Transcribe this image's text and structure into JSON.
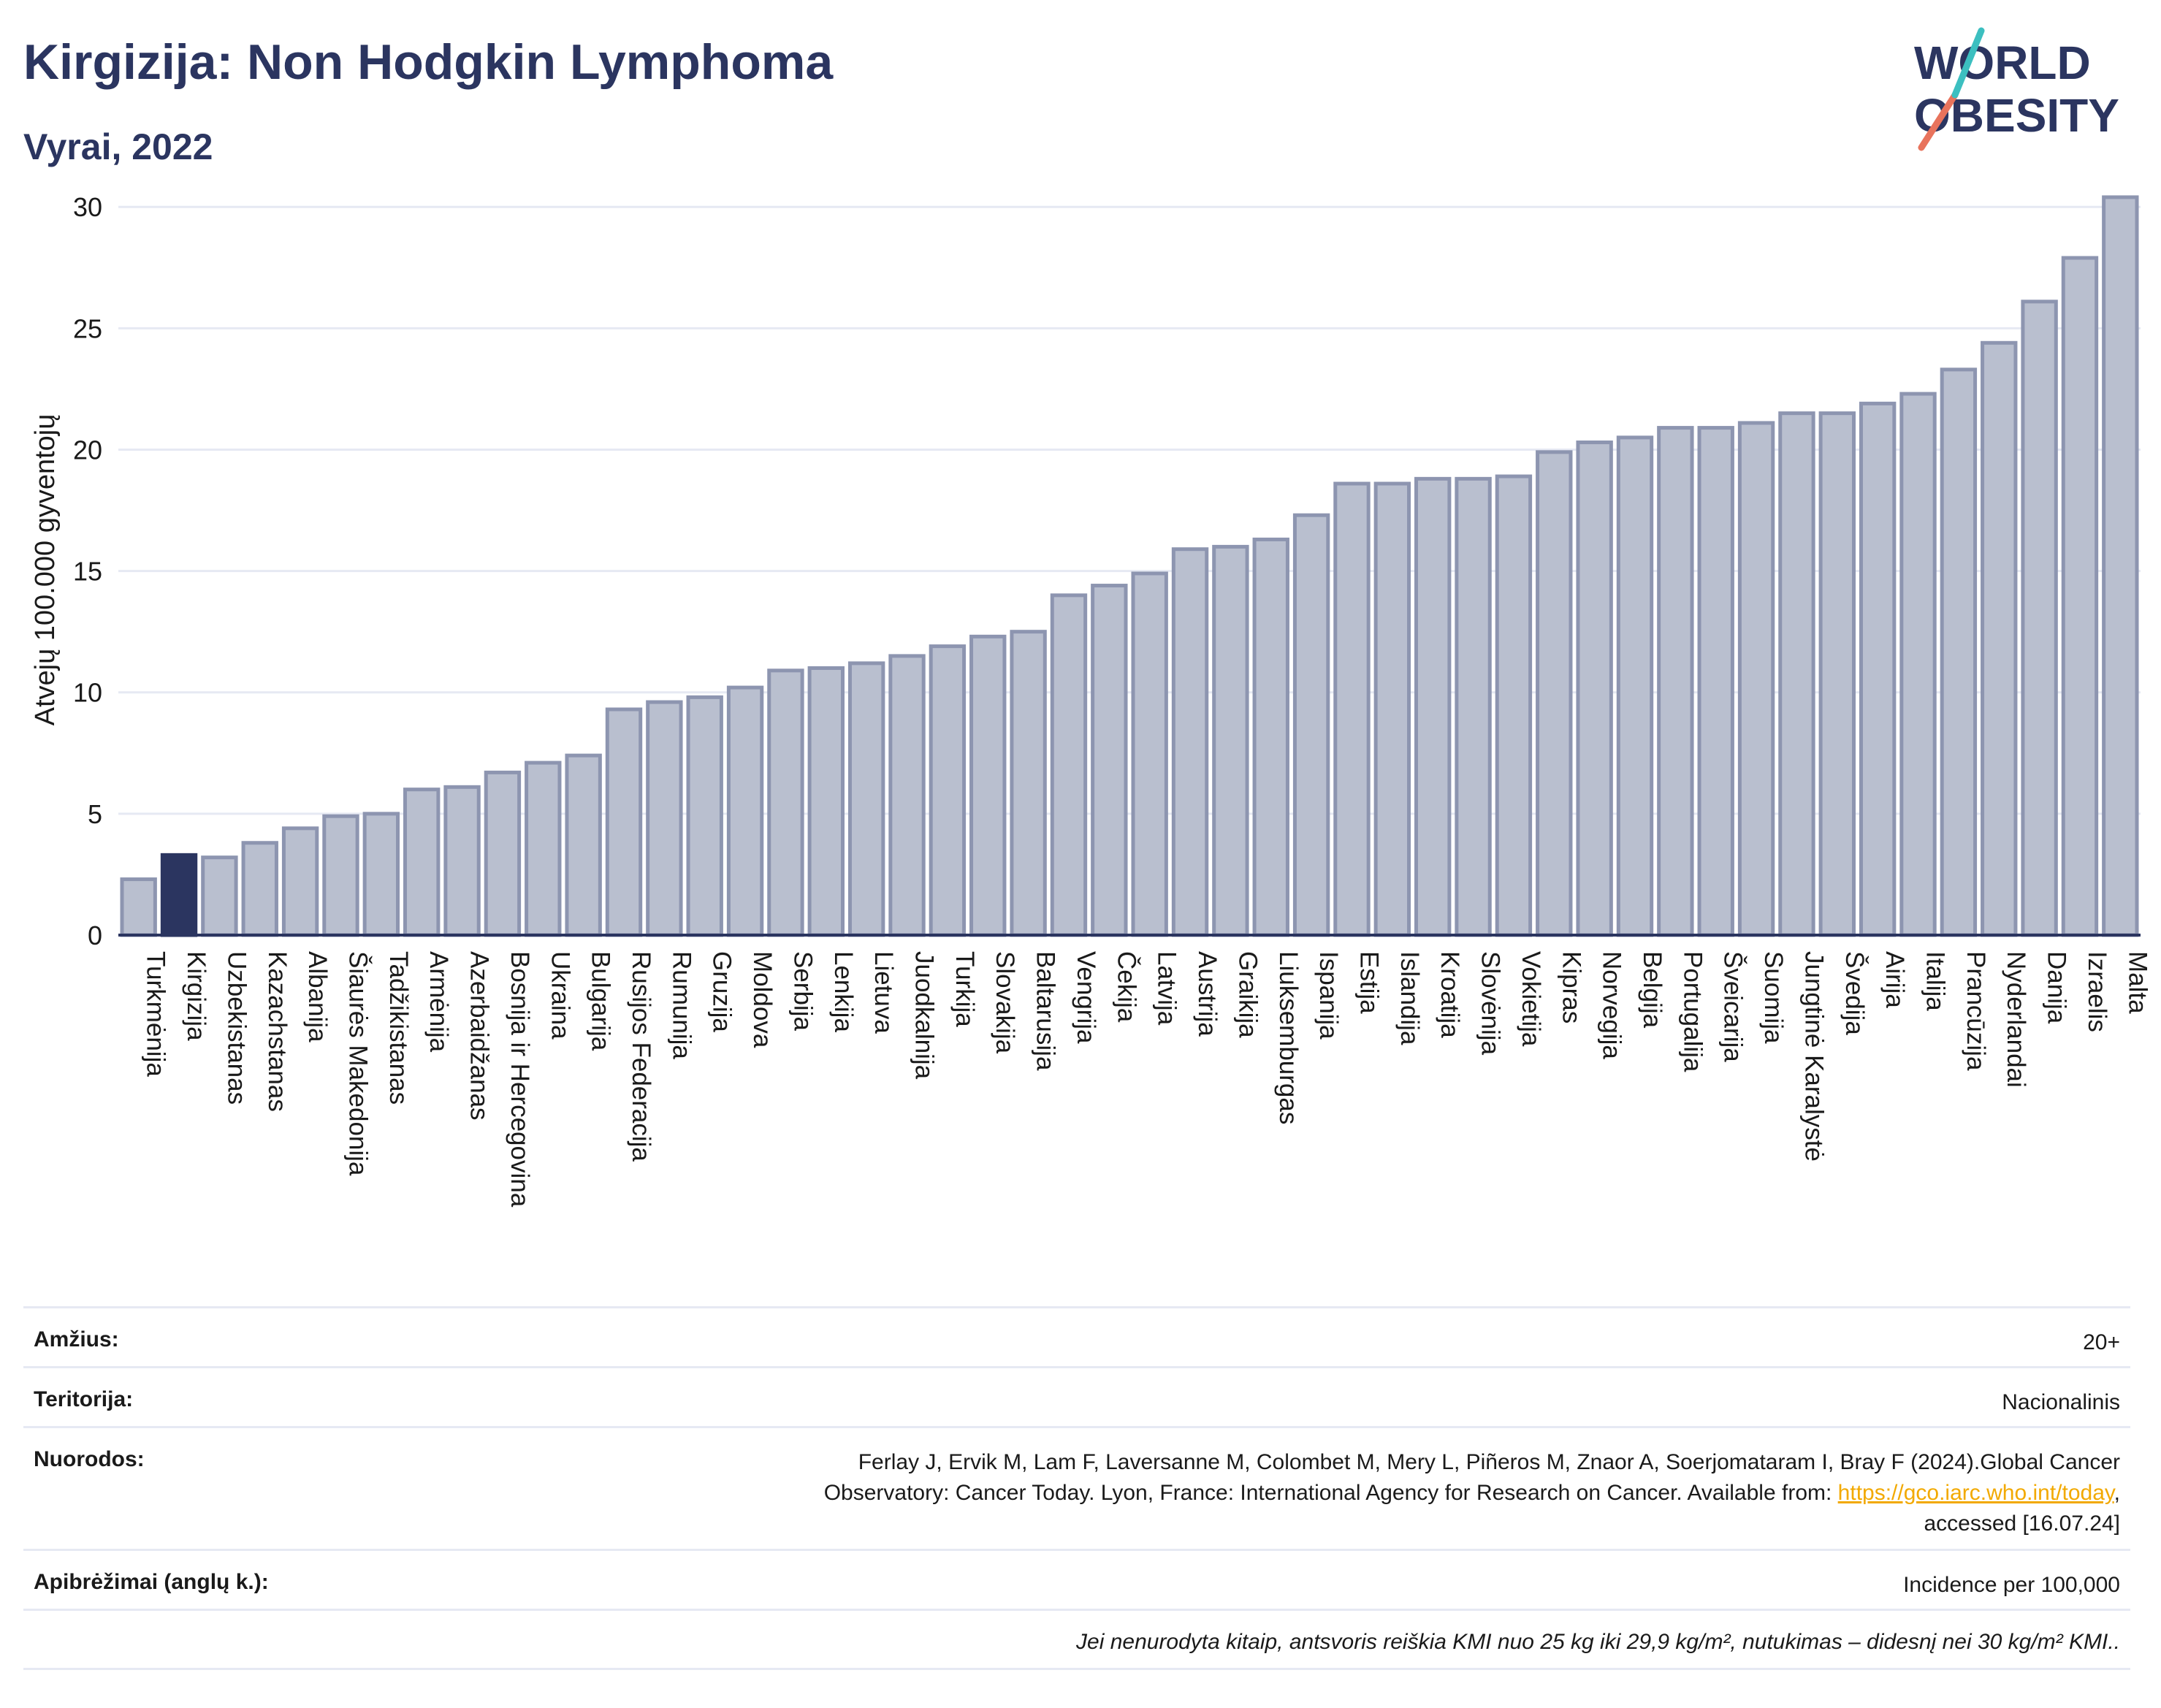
{
  "header": {
    "title": "Kirgizija: Non Hodgkin Lymphoma",
    "subtitle": "Vyrai, 2022"
  },
  "logo": {
    "line1": "WORLD",
    "line2": "OBESITY"
  },
  "colors": {
    "bar": "#b9bfcf",
    "bar_stroke": "#8d95b0",
    "highlight": "#2b3560",
    "text": "#2b3560",
    "grid": "#e6e9f3",
    "link": "#f2a900"
  },
  "chart_data": {
    "type": "bar",
    "ylabel": "Atvejų 100.000 gyventojų",
    "ylim": [
      0,
      31
    ],
    "yticks": [
      0,
      5,
      10,
      15,
      20,
      25,
      30
    ],
    "grid": true,
    "highlight": "Kirgizija",
    "categories": [
      "Turkmėnija",
      "Kirgizija",
      "Uzbekistanas",
      "Kazachstanas",
      "Albanija",
      "Šiaurės Makedonija",
      "Tadžikistanas",
      "Armėnija",
      "Azerbaidžanas",
      "Bosnija ir Hercegovina",
      "Ukraina",
      "Bulgarija",
      "Rusijos Federacija",
      "Rumunija",
      "Gruzija",
      "Moldova",
      "Serbija",
      "Lenkija",
      "Lietuva",
      "Juodkalnija",
      "Turkija",
      "Slovakija",
      "Baltarusija",
      "Vengrija",
      "Čekija",
      "Latvija",
      "Austrija",
      "Graikija",
      "Liuksemburgas",
      "Ispanija",
      "Estija",
      "Islandija",
      "Kroatija",
      "Slovėnija",
      "Vokietija",
      "Kipras",
      "Norvegija",
      "Belgija",
      "Portugalija",
      "Šveicarija",
      "Suomija",
      "Jungtinė Karalystė",
      "Švedija",
      "Airija",
      "Italija",
      "Prancūzija",
      "Nyderlandai",
      "Danija",
      "Izraelis",
      "Malta"
    ],
    "values": [
      2.3,
      3.3,
      3.2,
      3.8,
      4.4,
      4.9,
      5.0,
      6.0,
      6.1,
      6.7,
      7.1,
      7.4,
      9.3,
      9.6,
      9.8,
      10.2,
      10.9,
      11.0,
      11.2,
      11.5,
      11.9,
      12.3,
      12.5,
      14.0,
      14.4,
      14.9,
      15.9,
      16.0,
      16.3,
      17.3,
      18.6,
      18.6,
      18.8,
      18.8,
      18.9,
      19.9,
      20.3,
      20.5,
      20.9,
      20.9,
      21.1,
      21.5,
      21.5,
      21.9,
      22.3,
      23.3,
      24.4,
      26.1,
      27.9,
      30.4
    ]
  },
  "info": {
    "age_label": "Amžius:",
    "age_value": "20+",
    "territory_label": "Teritorija:",
    "territory_value": "Nacionalinis",
    "refs_label": "Nuorodos:",
    "refs_line1": "Ferlay J, Ervik M, Lam F, Laversanne M, Colombet M, Mery L, Piñeros M, Znaor A, Soerjomataram I, Bray F (2024).Global Cancer",
    "refs_line2": "Observatory: Cancer Today. Lyon, France: International Agency for Research on Cancer. Available from: ",
    "refs_link": "https://gco.iarc.who.int/today",
    "refs_line2_end": ",",
    "refs_line3": "accessed [16.07.24]",
    "defs_label": "Apibrėžimai (anglų k.):",
    "defs_value": "Incidence per 100,000",
    "note": "Jei nenurodyta kitaip, antsvoris reiškia KMI nuo 25 kg iki 29,9 kg/m², nutukimas – didesnį nei 30 kg/m² KMI.."
  }
}
